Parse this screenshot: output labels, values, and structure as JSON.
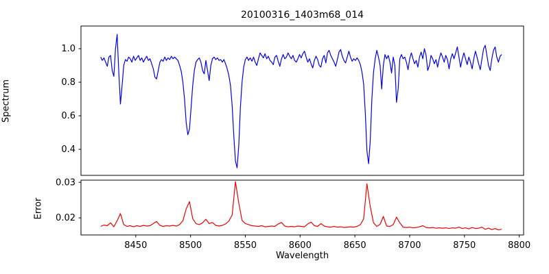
{
  "figure": {
    "title": "20100316_1403m68_014",
    "background": "#ffffff",
    "axis_color": "#000000",
    "tick_font_px": 13
  },
  "chart_data": [
    {
      "type": "line",
      "name": "spectrum-panel",
      "ylabel": "Spectrum",
      "legend": "none",
      "grid": false,
      "line_color": "#0000ee",
      "xlim": [
        8400,
        8804
      ],
      "ylim": [
        0.245,
        1.135
      ],
      "yticks": [
        0.4,
        0.6,
        0.8,
        1.0
      ],
      "ytick_labels": [
        "0.4",
        "0.6",
        "0.8",
        "1.0"
      ],
      "x_start": 8418,
      "x_step": 1.5,
      "values": [
        0.95,
        0.93,
        0.945,
        0.92,
        0.895,
        0.95,
        0.96,
        0.87,
        0.835,
        1.0,
        1.085,
        0.86,
        0.67,
        0.78,
        0.9,
        0.935,
        0.925,
        0.95,
        0.94,
        0.92,
        0.955,
        0.93,
        0.945,
        0.96,
        0.93,
        0.945,
        0.92,
        0.94,
        0.955,
        0.93,
        0.94,
        0.91,
        0.88,
        0.83,
        0.82,
        0.87,
        0.92,
        0.935,
        0.925,
        0.95,
        0.93,
        0.945,
        0.935,
        0.955,
        0.94,
        0.95,
        0.94,
        0.93,
        0.9,
        0.865,
        0.8,
        0.7,
        0.56,
        0.487,
        0.52,
        0.65,
        0.78,
        0.87,
        0.92,
        0.935,
        0.945,
        0.92,
        0.87,
        0.85,
        0.93,
        0.87,
        0.81,
        0.9,
        0.94,
        0.95,
        0.935,
        0.945,
        0.93,
        0.935,
        0.92,
        0.935,
        0.91,
        0.88,
        0.84,
        0.78,
        0.66,
        0.48,
        0.33,
        0.29,
        0.42,
        0.65,
        0.8,
        0.89,
        0.935,
        0.95,
        0.93,
        0.945,
        0.925,
        0.95,
        0.92,
        0.9,
        0.94,
        0.975,
        0.96,
        0.945,
        0.97,
        0.94,
        0.955,
        0.93,
        0.92,
        0.905,
        0.95,
        0.96,
        0.925,
        0.895,
        0.94,
        0.965,
        0.94,
        0.95,
        0.975,
        0.955,
        0.94,
        0.96,
        0.93,
        0.92,
        0.94,
        0.965,
        0.945,
        0.97,
        0.985,
        0.95,
        0.92,
        0.94,
        0.91,
        0.885,
        0.93,
        0.955,
        0.935,
        0.9,
        0.89,
        0.94,
        0.96,
        0.915,
        0.975,
        0.99,
        0.96,
        0.94,
        0.92,
        0.895,
        0.935,
        0.98,
        0.995,
        0.955,
        0.93,
        0.915,
        0.95,
        0.985,
        0.95,
        0.925,
        0.94,
        0.93,
        0.945,
        0.93,
        0.905,
        0.86,
        0.79,
        0.62,
        0.39,
        0.315,
        0.45,
        0.7,
        0.86,
        0.94,
        0.99,
        0.95,
        0.9,
        0.76,
        0.9,
        0.965,
        0.94,
        0.96,
        0.92,
        0.855,
        0.95,
        0.9,
        0.68,
        0.76,
        0.94,
        0.965,
        0.94,
        0.95,
        0.92,
        0.875,
        0.94,
        0.975,
        0.94,
        0.91,
        0.93,
        0.89,
        0.95,
        0.98,
        0.94,
        1.0,
        0.96,
        0.87,
        0.9,
        0.96,
        0.94,
        0.91,
        0.935,
        0.89,
        0.94,
        0.975,
        0.95,
        0.92,
        0.96,
        0.935,
        0.88,
        0.94,
        0.97,
        0.94,
        0.975,
        1.01,
        0.95,
        0.89,
        0.94,
        0.975,
        0.94,
        0.905,
        0.95,
        0.92,
        0.88,
        0.94,
        0.985,
        0.95,
        0.91,
        0.875,
        0.94,
        1.0,
        1.02,
        0.96,
        0.9,
        0.87,
        0.94,
        0.99,
        1.01,
        0.95,
        0.92,
        0.955,
        0.965
      ],
      "absorption_features_wavelengths": [
        8435,
        8469,
        8498,
        8517,
        8542,
        8662,
        8675,
        8688
      ]
    },
    {
      "type": "line",
      "name": "error-panel",
      "ylabel": "Error",
      "xlabel": "Wavelength",
      "legend": "none",
      "grid": false,
      "line_color": "#ee0000",
      "xlim": [
        8400,
        8804
      ],
      "ylim": [
        0.0152,
        0.0306
      ],
      "yticks": [
        0.02,
        0.03
      ],
      "ytick_labels": [
        "0.02",
        "0.03"
      ],
      "xticks": [
        8450,
        8500,
        8550,
        8600,
        8650,
        8700,
        8750,
        8800
      ],
      "xtick_labels": [
        "8450",
        "8500",
        "8550",
        "8600",
        "8650",
        "8700",
        "8750",
        "8800"
      ],
      "x_start": 8418,
      "x_step": 3,
      "values": [
        0.0176,
        0.018,
        0.0178,
        0.0186,
        0.0175,
        0.0192,
        0.0212,
        0.0181,
        0.0176,
        0.0178,
        0.0175,
        0.0178,
        0.0176,
        0.0179,
        0.0177,
        0.0178,
        0.0184,
        0.019,
        0.0179,
        0.0176,
        0.0178,
        0.0177,
        0.0179,
        0.0177,
        0.0181,
        0.0192,
        0.0225,
        0.0246,
        0.0198,
        0.0184,
        0.0181,
        0.0186,
        0.0196,
        0.0184,
        0.0187,
        0.0179,
        0.0177,
        0.0179,
        0.0183,
        0.0191,
        0.0208,
        0.0302,
        0.0242,
        0.0193,
        0.0184,
        0.0181,
        0.0178,
        0.0177,
        0.0176,
        0.0178,
        0.0175,
        0.0176,
        0.0177,
        0.0176,
        0.0183,
        0.0187,
        0.0177,
        0.0175,
        0.0176,
        0.0175,
        0.0177,
        0.0176,
        0.0175,
        0.0183,
        0.0188,
        0.0178,
        0.0176,
        0.0184,
        0.0177,
        0.0175,
        0.0174,
        0.0176,
        0.0174,
        0.0175,
        0.0173,
        0.0174,
        0.0175,
        0.0174,
        0.0176,
        0.0181,
        0.0197,
        0.0296,
        0.0232,
        0.0186,
        0.0176,
        0.0182,
        0.0204,
        0.0177,
        0.0176,
        0.0181,
        0.0202,
        0.0186,
        0.0174,
        0.0173,
        0.0174,
        0.0172,
        0.0173,
        0.0175,
        0.0178,
        0.0173,
        0.0172,
        0.0173,
        0.0171,
        0.0172,
        0.0171,
        0.0172,
        0.017,
        0.0172,
        0.0171,
        0.0174,
        0.017,
        0.0172,
        0.0169,
        0.0173,
        0.017,
        0.0171,
        0.0174,
        0.0168,
        0.0171,
        0.0167,
        0.017,
        0.0166,
        0.0168
      ]
    }
  ]
}
